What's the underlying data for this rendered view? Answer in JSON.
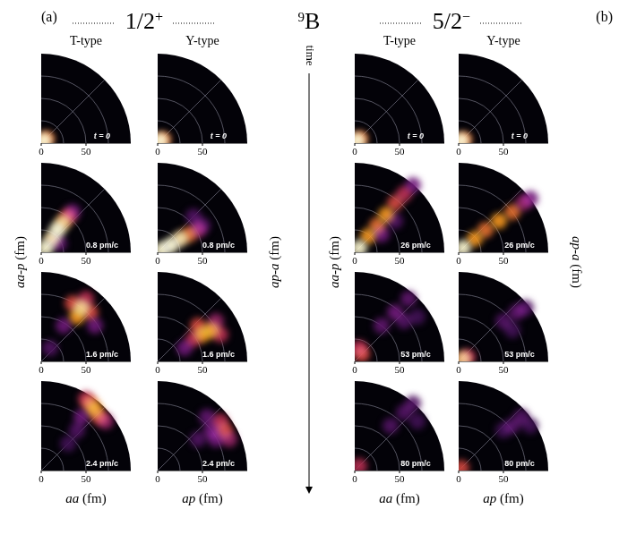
{
  "figure": {
    "groups": [
      {
        "label": "(a)",
        "state": "1/2+"
      },
      {
        "label": "(b)",
        "state": "5/2−"
      }
    ],
    "nucleus": "9B",
    "arrow_label": "time"
  },
  "chart_data": [
    {
      "type": "heatmap",
      "group": "(a)",
      "column": "T-type",
      "xlabel": "aa (fm)",
      "ylabel": "aa-p (fm)",
      "xlim": [
        0,
        100
      ],
      "ylim": [
        0,
        100
      ],
      "xticks": [
        0,
        50
      ],
      "tick_labels": "x",
      "grid": true,
      "grid_radii": [
        25,
        50,
        75
      ],
      "frames": [
        {
          "time": "t = 0",
          "density": [
            [
              3,
              3,
              1
            ],
            [
              6,
              5,
              0.7
            ]
          ]
        },
        {
          "time": "0.8 pm/c",
          "density": [
            [
              5,
              5,
              1
            ],
            [
              12,
              15,
              0.95
            ],
            [
              18,
              25,
              1
            ],
            [
              24,
              33,
              0.9
            ],
            [
              30,
              40,
              0.6
            ],
            [
              35,
              45,
              0.3
            ],
            [
              20,
              10,
              0.25
            ]
          ]
        },
        {
          "time": "1.6 pm/c",
          "density": [
            [
              40,
              50,
              0.8
            ],
            [
              45,
              60,
              0.9
            ],
            [
              35,
              65,
              0.6
            ],
            [
              55,
              55,
              0.6
            ],
            [
              50,
              70,
              0.5
            ],
            [
              25,
              40,
              0.3
            ],
            [
              10,
              15,
              0.2
            ],
            [
              60,
              40,
              0.3
            ]
          ]
        },
        {
          "time": "2.4 pm/c",
          "density": [
            [
              60,
              68,
              0.8
            ],
            [
              55,
              75,
              0.7
            ],
            [
              65,
              60,
              0.6
            ],
            [
              50,
              80,
              0.5
            ],
            [
              72,
              55,
              0.4
            ],
            [
              45,
              60,
              0.3
            ],
            [
              40,
              45,
              0.2
            ],
            [
              30,
              30,
              0.15
            ]
          ]
        }
      ]
    },
    {
      "type": "heatmap",
      "group": "(a)",
      "column": "Y-type",
      "xlabel": "ap (fm)",
      "ylabel": "ap-a (fm)",
      "xlim": [
        0,
        100
      ],
      "ylim": [
        0,
        100
      ],
      "xticks": [
        0,
        50
      ],
      "tick_labels": "x",
      "grid": true,
      "grid_radii": [
        25,
        50,
        75
      ],
      "frames": [
        {
          "time": "t = 0",
          "density": [
            [
              3,
              3,
              1
            ],
            [
              6,
              4,
              0.7
            ]
          ]
        },
        {
          "time": "0.8 pm/c",
          "density": [
            [
              5,
              3,
              1
            ],
            [
              15,
              8,
              1
            ],
            [
              25,
              15,
              0.95
            ],
            [
              35,
              20,
              0.7
            ],
            [
              45,
              25,
              0.4
            ],
            [
              50,
              30,
              0.2
            ],
            [
              40,
              40,
              0.2
            ]
          ]
        },
        {
          "time": "1.6 pm/c",
          "density": [
            [
              50,
              30,
              0.8
            ],
            [
              60,
              35,
              0.8
            ],
            [
              45,
              40,
              0.6
            ],
            [
              70,
              30,
              0.5
            ],
            [
              65,
              45,
              0.4
            ],
            [
              40,
              25,
              0.5
            ],
            [
              30,
              15,
              0.3
            ]
          ]
        },
        {
          "time": "2.4 pm/c",
          "density": [
            [
              75,
              45,
              0.6
            ],
            [
              70,
              55,
              0.5
            ],
            [
              80,
              35,
              0.4
            ],
            [
              60,
              45,
              0.3
            ],
            [
              65,
              35,
              0.3
            ],
            [
              55,
              60,
              0.25
            ],
            [
              45,
              35,
              0.2
            ]
          ]
        }
      ]
    },
    {
      "type": "heatmap",
      "group": "(b)",
      "column": "T-type",
      "xlabel": "aa (fm)",
      "ylabel": "aa-p (fm)",
      "xlim": [
        0,
        100
      ],
      "ylim": [
        0,
        100
      ],
      "xticks": [
        0,
        50
      ],
      "tick_labels": "x",
      "grid": true,
      "grid_radii": [
        25,
        50,
        75
      ],
      "frames": [
        {
          "time": "t = 0",
          "density": [
            [
              3,
              3,
              1
            ],
            [
              6,
              5,
              0.7
            ]
          ]
        },
        {
          "time": "26 pm/c",
          "density": [
            [
              5,
              5,
              1
            ],
            [
              15,
              18,
              0.8
            ],
            [
              25,
              30,
              0.7
            ],
            [
              35,
              42,
              0.8
            ],
            [
              45,
              55,
              0.6
            ],
            [
              55,
              65,
              0.5
            ],
            [
              65,
              75,
              0.3
            ],
            [
              30,
              20,
              0.3
            ],
            [
              45,
              35,
              0.2
            ]
          ]
        },
        {
          "time": "53 pm/c",
          "density": [
            [
              8,
              8,
              0.6
            ],
            [
              5,
              15,
              0.5
            ],
            [
              30,
              40,
              0.25
            ],
            [
              45,
              55,
              0.3
            ],
            [
              60,
              70,
              0.25
            ],
            [
              55,
              45,
              0.2
            ],
            [
              70,
              50,
              0.15
            ]
          ]
        },
        {
          "time": "80 pm/c",
          "density": [
            [
              5,
              5,
              0.5
            ],
            [
              40,
              50,
              0.2
            ],
            [
              55,
              65,
              0.2
            ],
            [
              65,
              75,
              0.2
            ],
            [
              70,
              55,
              0.15
            ]
          ]
        }
      ]
    },
    {
      "type": "heatmap",
      "group": "(b)",
      "column": "Y-type",
      "xlabel": "ap (fm)",
      "ylabel": "ap-a (fm)",
      "xlim": [
        0,
        100
      ],
      "ylim": [
        0,
        100
      ],
      "xticks": [
        0,
        50
      ],
      "tick_labels": "x",
      "grid": true,
      "grid_radii": [
        25,
        50,
        75
      ],
      "frames": [
        {
          "time": "t = 0",
          "density": [
            [
              3,
              3,
              1
            ],
            [
              6,
              4,
              0.7
            ]
          ]
        },
        {
          "time": "26 pm/c",
          "density": [
            [
              5,
              5,
              1
            ],
            [
              18,
              15,
              0.8
            ],
            [
              30,
              25,
              0.7
            ],
            [
              45,
              35,
              0.8
            ],
            [
              60,
              45,
              0.7
            ],
            [
              72,
              55,
              0.4
            ],
            [
              80,
              60,
              0.3
            ]
          ]
        },
        {
          "time": "53 pm/c",
          "density": [
            [
              5,
              3,
              0.9
            ],
            [
              10,
              5,
              0.5
            ],
            [
              50,
              45,
              0.2
            ],
            [
              65,
              55,
              0.25
            ],
            [
              75,
              60,
              0.2
            ],
            [
              60,
              35,
              0.15
            ]
          ]
        },
        {
          "time": "80 pm/c",
          "density": [
            [
              3,
              3,
              0.6
            ],
            [
              60,
              50,
              0.2
            ],
            [
              70,
              60,
              0.2
            ],
            [
              80,
              50,
              0.15
            ],
            [
              50,
              45,
              0.15
            ]
          ]
        }
      ]
    }
  ]
}
